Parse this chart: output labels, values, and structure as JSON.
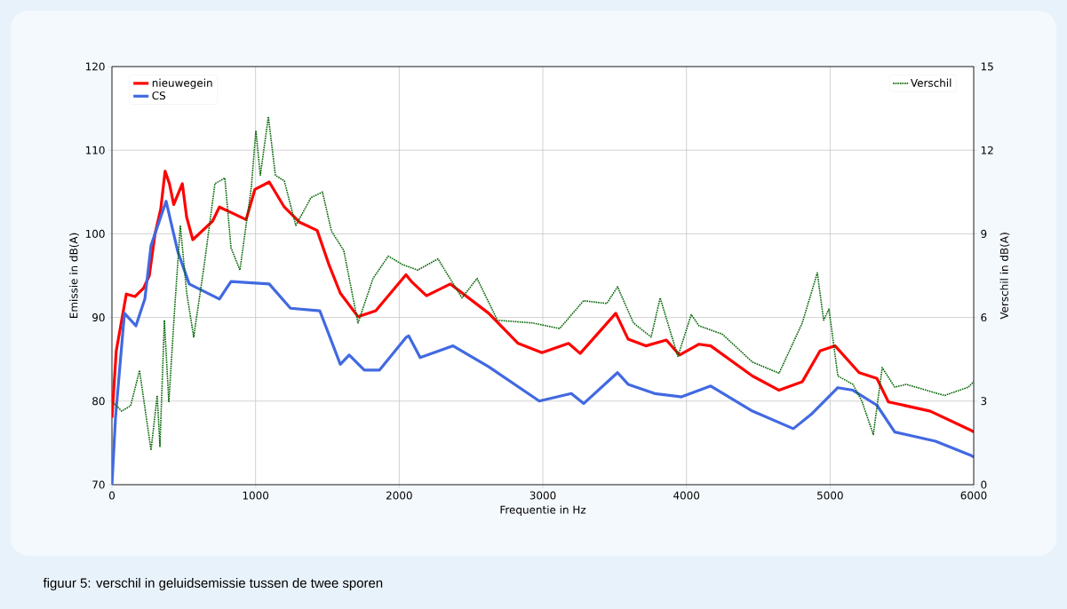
{
  "chart_data": {
    "type": "line",
    "xlabel": "Frequentie in Hz",
    "ylabel": "Emissie in dB(A)",
    "y2label": "Verschil in dB(A)",
    "xlim": [
      0,
      6000
    ],
    "xticks": [
      0,
      1000,
      2000,
      3000,
      4000,
      5000,
      6000
    ],
    "ylim": [
      70,
      120
    ],
    "yticks": [
      70,
      80,
      90,
      100,
      110,
      120
    ],
    "y2lim": [
      0,
      15
    ],
    "y2ticks": [
      0,
      3,
      6,
      9,
      12,
      15
    ],
    "grid": true,
    "legend": "top left",
    "annotations": [
      "figuur 5: verschil in geluidsemissie tussen de twee sporen"
    ],
    "series": [
      {
        "name": "nieuwegein",
        "color": "#ff0000",
        "x": [
          0,
          30,
          100,
          160,
          220,
          260,
          300,
          340,
          370,
          400,
          430,
          490,
          520,
          563,
          700,
          748,
          934,
          995,
          1095,
          1200,
          1305,
          1429,
          1509,
          1590,
          1713,
          1837,
          2047,
          2085,
          2190,
          2356,
          2623,
          2828,
          2994,
          3179,
          3260,
          3508,
          3594,
          3717,
          3860,
          3952,
          4088,
          4169,
          4459,
          4645,
          4806,
          4930,
          5035,
          5202,
          5326,
          5406,
          5697,
          5981,
          6000
        ],
        "values": [
          78,
          86,
          92.8,
          92.5,
          93.5,
          95,
          100,
          103,
          107.5,
          106,
          103.5,
          106,
          102,
          99.3,
          101.5,
          103.2,
          101.7,
          105.3,
          106.2,
          103.2,
          101.4,
          100.4,
          96.4,
          92.9,
          90.1,
          90.8,
          95.1,
          94.3,
          92.6,
          94.0,
          90.5,
          86.9,
          85.8,
          86.9,
          85.7,
          90.5,
          87.4,
          86.6,
          87.3,
          85.5,
          86.8,
          86.6,
          83.0,
          81.3,
          82.3,
          86.0,
          86.6,
          83.4,
          82.7,
          79.9,
          78.8,
          76.5,
          76.3
        ]
      },
      {
        "name": "CS",
        "color": "#4169e1",
        "x": [
          0,
          25,
          87,
          167,
          229,
          272,
          377,
          458,
          538,
          748,
          829,
          1095,
          1243,
          1447,
          1590,
          1652,
          1757,
          1862,
          2047,
          2066,
          2146,
          2375,
          2623,
          2975,
          3198,
          3284,
          3520,
          3594,
          3779,
          3965,
          4169,
          4459,
          4744,
          4868,
          5054,
          5159,
          5326,
          5450,
          5734,
          5981,
          6000
        ],
        "values": [
          70,
          78.1,
          90.5,
          89.0,
          92.2,
          98.6,
          103.9,
          97.9,
          94.0,
          92.2,
          94.3,
          94.0,
          91.1,
          90.8,
          84.4,
          85.5,
          83.7,
          83.7,
          87.6,
          87.8,
          85.2,
          86.6,
          84.1,
          80.0,
          80.9,
          79.7,
          83.4,
          82.0,
          80.9,
          80.5,
          81.8,
          78.8,
          76.7,
          78.4,
          81.6,
          81.3,
          79.5,
          76.3,
          75.2,
          73.5,
          73.3
        ]
      },
      {
        "name": "Verschil",
        "color": "#006400",
        "axis": "y2",
        "line_style": "dotted",
        "x": [
          6,
          68,
          130,
          192,
          272,
          315,
          334,
          365,
          396,
          439,
          476,
          520,
          569,
          643,
          717,
          786,
          829,
          891,
          971,
          1002,
          1033,
          1089,
          1138,
          1200,
          1280,
          1386,
          1466,
          1528,
          1614,
          1713,
          1818,
          1924,
          2022,
          2128,
          2270,
          2437,
          2542,
          2684,
          2932,
          3117,
          3284,
          3445,
          3520,
          3631,
          3754,
          3817,
          3940,
          4033,
          4088,
          4250,
          4459,
          4645,
          4806,
          4911,
          4955,
          4992,
          5054,
          5159,
          5221,
          5301,
          5363,
          5450,
          5530,
          5796,
          5963,
          6000
        ],
        "values": [
          2.96,
          2.64,
          2.83,
          4.1,
          1.24,
          3.2,
          1.37,
          5.9,
          2.96,
          6.5,
          9.3,
          6.9,
          5.3,
          7.9,
          10.8,
          11.0,
          8.5,
          7.7,
          10.7,
          12.7,
          11.1,
          13.2,
          11.1,
          10.9,
          9.3,
          10.3,
          10.5,
          9.1,
          8.4,
          5.8,
          7.4,
          8.2,
          7.9,
          7.7,
          8.1,
          6.7,
          7.4,
          5.9,
          5.8,
          5.6,
          6.6,
          6.5,
          7.1,
          5.8,
          5.3,
          6.7,
          4.6,
          6.1,
          5.7,
          5.4,
          4.4,
          4.0,
          5.8,
          7.6,
          5.9,
          6.3,
          3.9,
          3.6,
          3.0,
          1.8,
          4.2,
          3.5,
          3.6,
          3.2,
          3.5,
          3.7
        ]
      }
    ]
  }
}
